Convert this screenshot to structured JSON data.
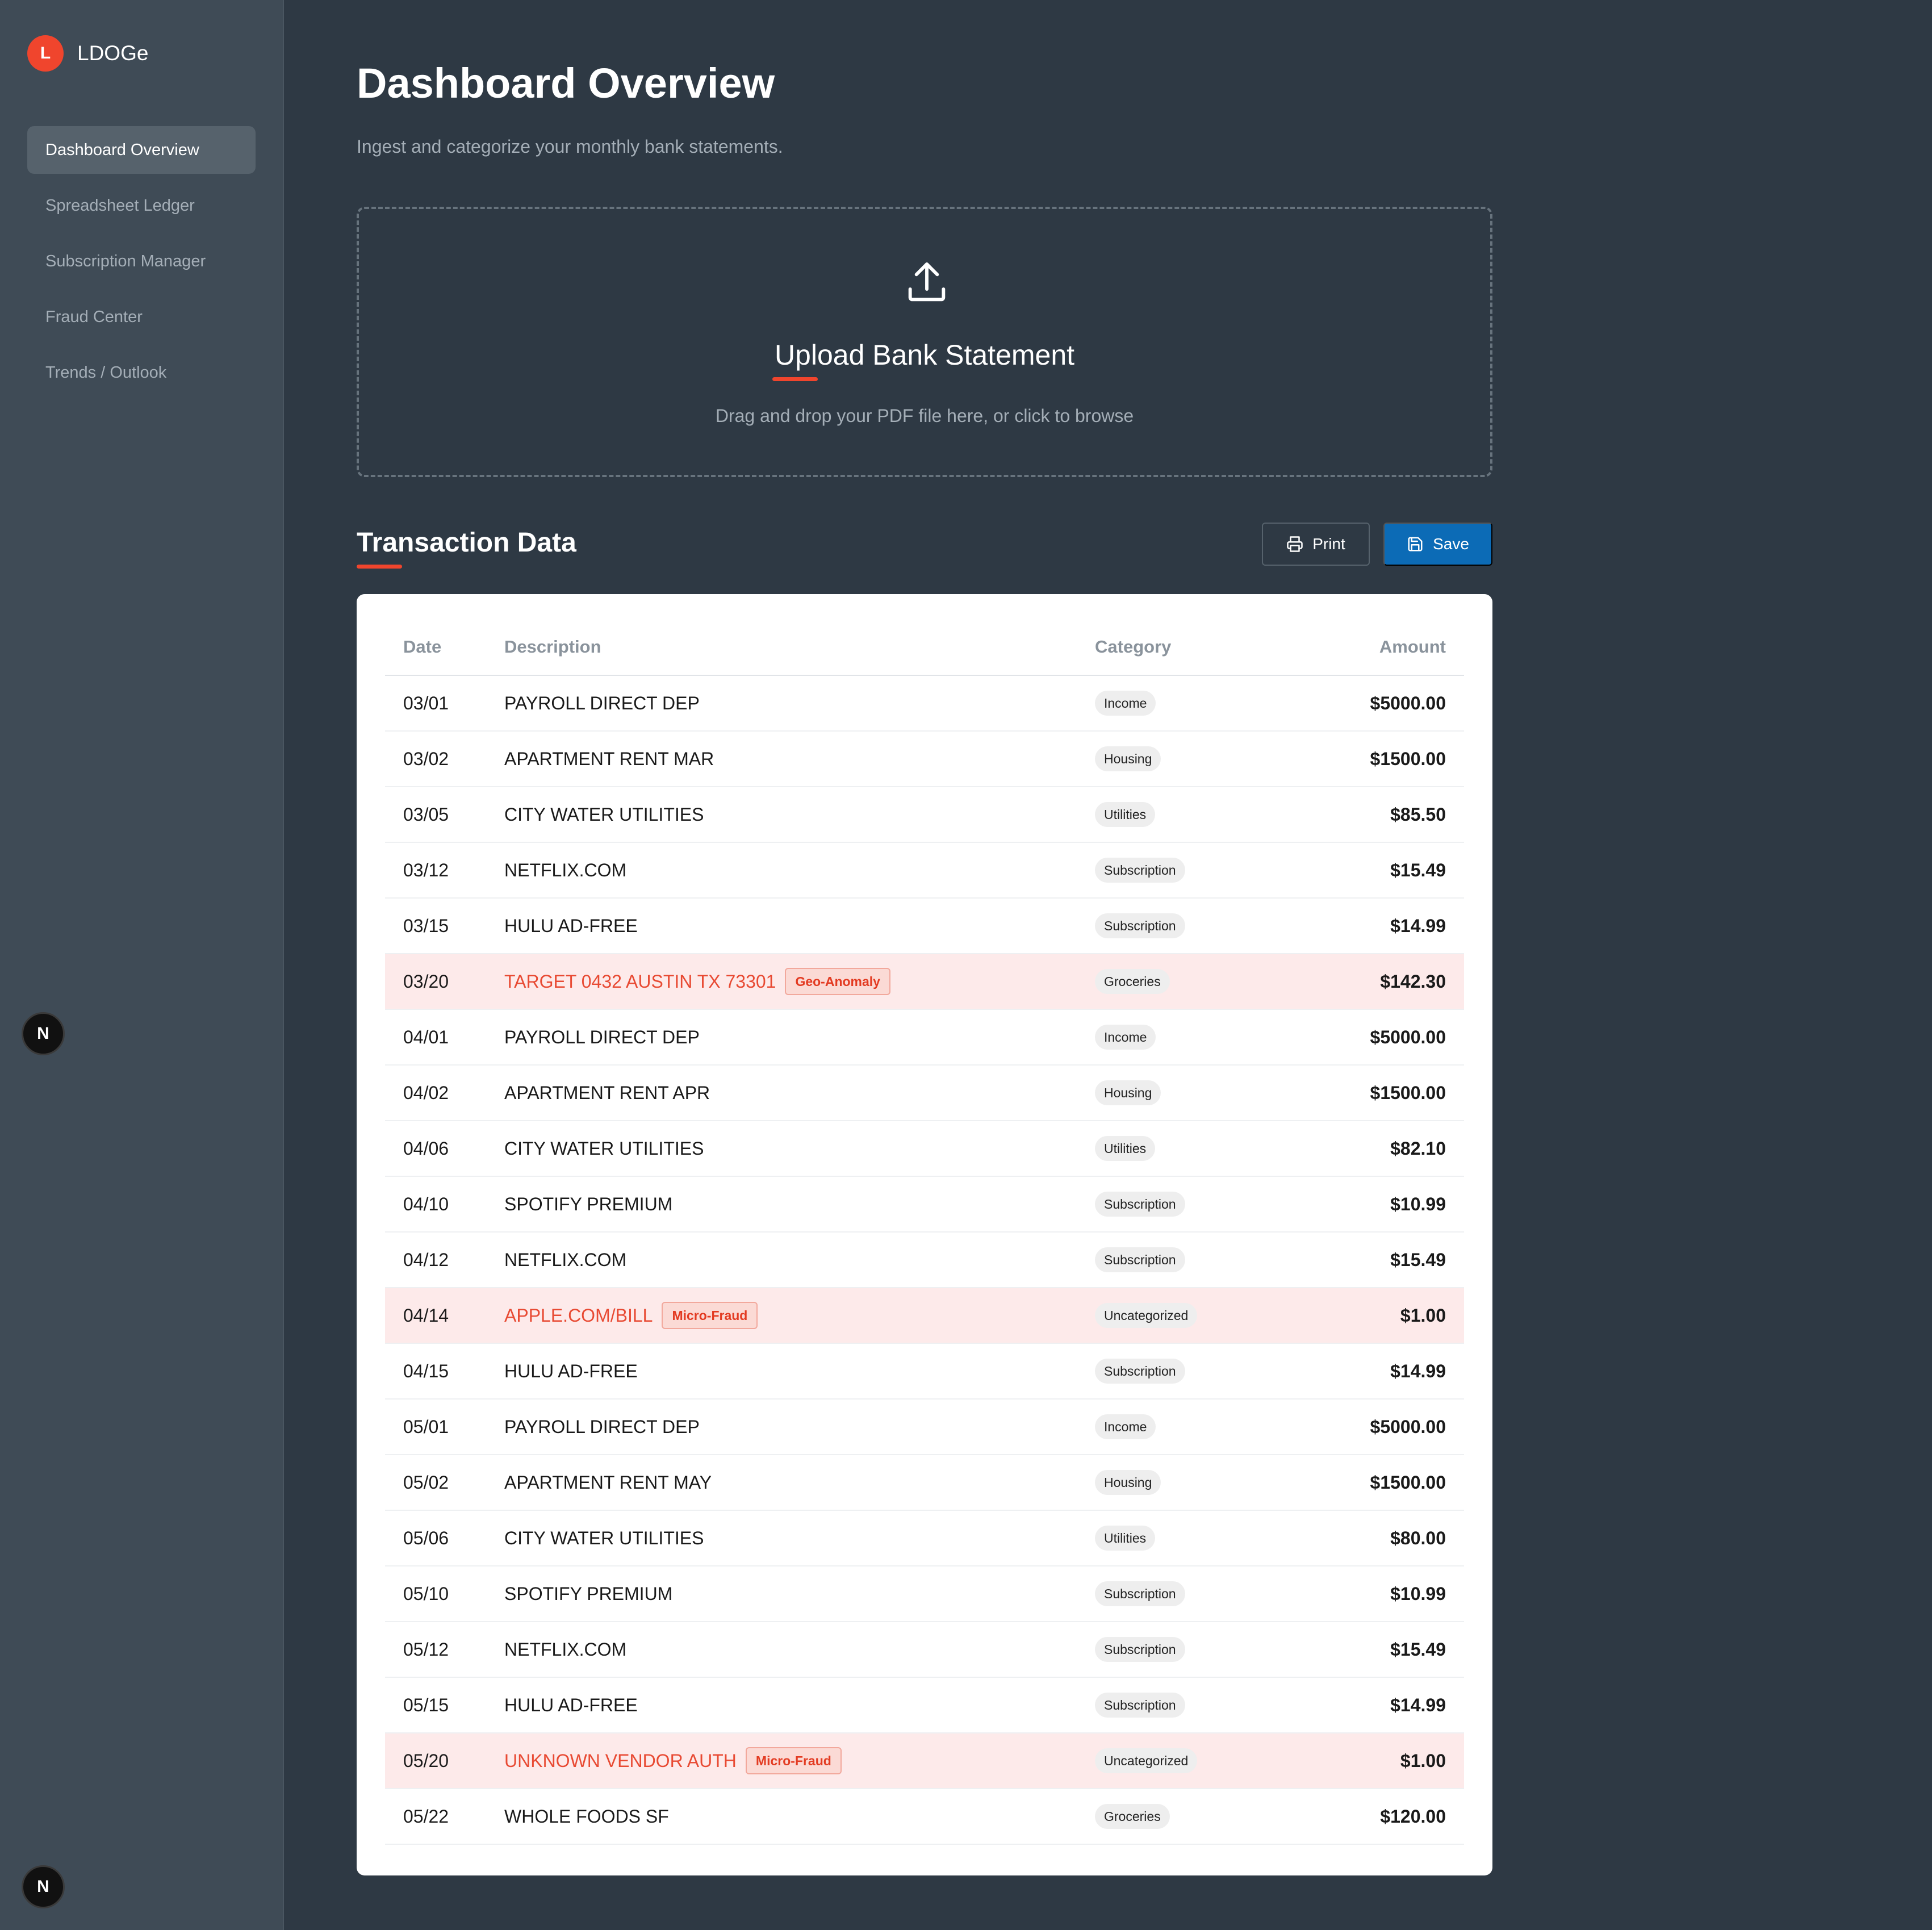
{
  "app": {
    "logo_letter": "L",
    "name": "LDOGe"
  },
  "sidebar": {
    "items": [
      {
        "label": "Dashboard Overview",
        "active": true
      },
      {
        "label": "Spreadsheet Ledger",
        "active": false
      },
      {
        "label": "Subscription Manager",
        "active": false
      },
      {
        "label": "Fraud Center",
        "active": false
      },
      {
        "label": "Trends / Outlook",
        "active": false
      }
    ],
    "badge_letter": "N"
  },
  "main": {
    "title": "Dashboard Overview",
    "subtitle": "Ingest and categorize your monthly bank statements.",
    "upload": {
      "icon": "upload-icon",
      "title": "Upload Bank Statement",
      "hint": "Drag and drop your PDF file here, or click to browse"
    },
    "transactions": {
      "title": "Transaction Data",
      "print_label": "Print",
      "save_label": "Save",
      "columns": {
        "date": "Date",
        "description": "Description",
        "category": "Category",
        "amount": "Amount"
      },
      "rows": [
        {
          "date": "03/01",
          "description": "PAYROLL DIRECT DEP",
          "flag": "",
          "category": "Income",
          "amount": "$5000.00"
        },
        {
          "date": "03/02",
          "description": "APARTMENT RENT MAR",
          "flag": "",
          "category": "Housing",
          "amount": "$1500.00"
        },
        {
          "date": "03/05",
          "description": "CITY WATER UTILITIES",
          "flag": "",
          "category": "Utilities",
          "amount": "$85.50"
        },
        {
          "date": "03/12",
          "description": "NETFLIX.COM",
          "flag": "",
          "category": "Subscription",
          "amount": "$15.49"
        },
        {
          "date": "03/15",
          "description": "HULU AD-FREE",
          "flag": "",
          "category": "Subscription",
          "amount": "$14.99"
        },
        {
          "date": "03/20",
          "description": "TARGET 0432 AUSTIN TX 73301",
          "flag": "Geo-Anomaly",
          "category": "Groceries",
          "amount": "$142.30"
        },
        {
          "date": "04/01",
          "description": "PAYROLL DIRECT DEP",
          "flag": "",
          "category": "Income",
          "amount": "$5000.00"
        },
        {
          "date": "04/02",
          "description": "APARTMENT RENT APR",
          "flag": "",
          "category": "Housing",
          "amount": "$1500.00"
        },
        {
          "date": "04/06",
          "description": "CITY WATER UTILITIES",
          "flag": "",
          "category": "Utilities",
          "amount": "$82.10"
        },
        {
          "date": "04/10",
          "description": "SPOTIFY PREMIUM",
          "flag": "",
          "category": "Subscription",
          "amount": "$10.99"
        },
        {
          "date": "04/12",
          "description": "NETFLIX.COM",
          "flag": "",
          "category": "Subscription",
          "amount": "$15.49"
        },
        {
          "date": "04/14",
          "description": "APPLE.COM/BILL",
          "flag": "Micro-Fraud",
          "category": "Uncategorized",
          "amount": "$1.00"
        },
        {
          "date": "04/15",
          "description": "HULU AD-FREE",
          "flag": "",
          "category": "Subscription",
          "amount": "$14.99"
        },
        {
          "date": "05/01",
          "description": "PAYROLL DIRECT DEP",
          "flag": "",
          "category": "Income",
          "amount": "$5000.00"
        },
        {
          "date": "05/02",
          "description": "APARTMENT RENT MAY",
          "flag": "",
          "category": "Housing",
          "amount": "$1500.00"
        },
        {
          "date": "05/06",
          "description": "CITY WATER UTILITIES",
          "flag": "",
          "category": "Utilities",
          "amount": "$80.00"
        },
        {
          "date": "05/10",
          "description": "SPOTIFY PREMIUM",
          "flag": "",
          "category": "Subscription",
          "amount": "$10.99"
        },
        {
          "date": "05/12",
          "description": "NETFLIX.COM",
          "flag": "",
          "category": "Subscription",
          "amount": "$15.49"
        },
        {
          "date": "05/15",
          "description": "HULU AD-FREE",
          "flag": "",
          "category": "Subscription",
          "amount": "$14.99"
        },
        {
          "date": "05/20",
          "description": "UNKNOWN VENDOR AUTH",
          "flag": "Micro-Fraud",
          "category": "Uncategorized",
          "amount": "$1.00"
        },
        {
          "date": "05/22",
          "description": "WHOLE FOODS SF",
          "flag": "",
          "category": "Groceries",
          "amount": "$120.00"
        }
      ]
    }
  },
  "colors": {
    "accent": "#f0452d",
    "primary_button": "#0c6bb6",
    "sidebar_bg": "#3f4b56",
    "main_bg": "#2e3944",
    "flagged_row_bg": "#fdeaea",
    "flag_text": "#e33b22"
  }
}
